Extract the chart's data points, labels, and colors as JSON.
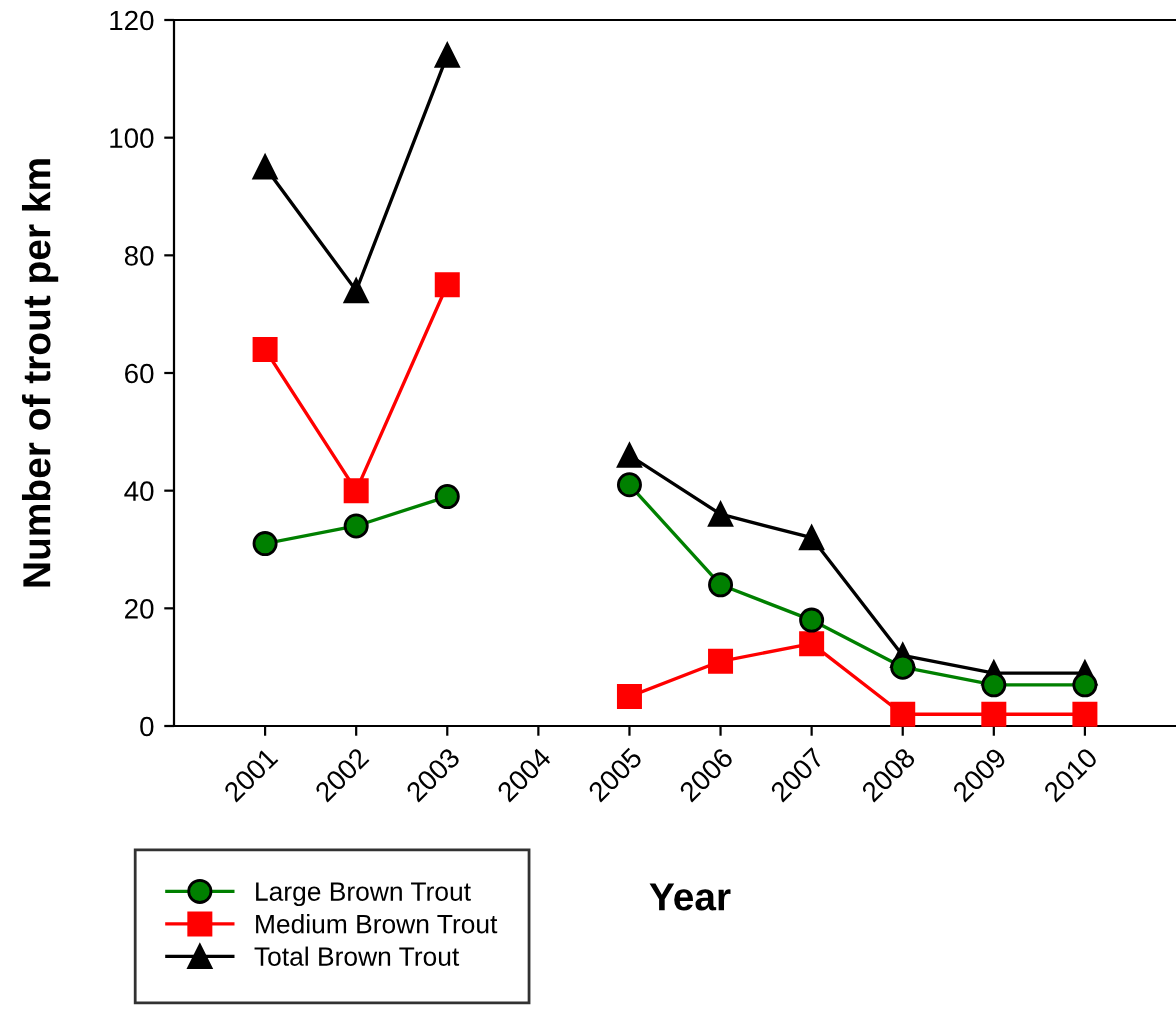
{
  "chart_data": {
    "type": "line",
    "xlabel": "Year",
    "ylabel": "Number of trout per km",
    "categories": [
      "2001",
      "2002",
      "2003",
      "2004",
      "2005",
      "2006",
      "2007",
      "2008",
      "2009",
      "2010"
    ],
    "series": [
      {
        "name": "Large Brown Trout",
        "color": "#008000",
        "marker": "circle",
        "values": [
          31,
          34,
          39,
          null,
          41,
          24,
          18,
          10,
          7,
          7
        ]
      },
      {
        "name": "Medium Brown Trout",
        "color": "#ff0000",
        "marker": "square",
        "values": [
          64,
          40,
          75,
          null,
          5,
          11,
          14,
          2,
          2,
          2
        ]
      },
      {
        "name": "Total Brown Trout",
        "color": "#000000",
        "marker": "triangle",
        "values": [
          95,
          74,
          114,
          null,
          46,
          36,
          32,
          12,
          9,
          9
        ]
      }
    ],
    "ylim": [
      0,
      120
    ],
    "yticks": [
      0,
      20,
      40,
      60,
      80,
      100,
      120
    ],
    "grid": false,
    "legend": "bottom left",
    "line_style": "solid"
  }
}
